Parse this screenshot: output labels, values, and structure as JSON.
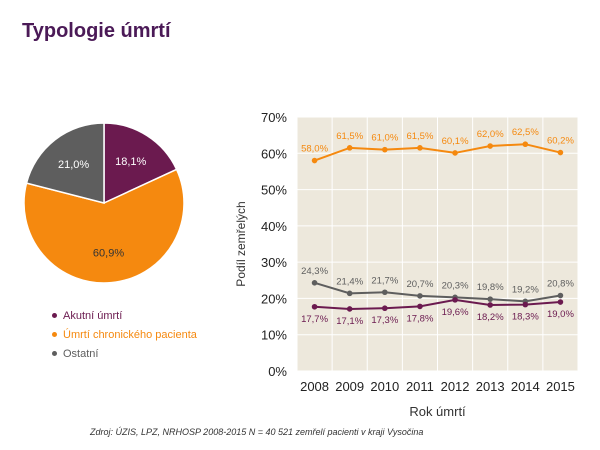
{
  "title": "Typologie úmrtí",
  "footer": "Zdroj: ÚZIS, LPZ, NRHOSP 2008-2015 N = 40 521 zemřelí pacienti v kraji Vysočina",
  "colors": {
    "acute": "#6b1a4f",
    "chronic": "#f5890f",
    "other": "#5e5e5e",
    "plot_bg": "#ede8dc",
    "grid": "#ffffff"
  },
  "chart_data": [
    {
      "type": "pie",
      "slices": [
        {
          "name": "Akutní úmrtí",
          "value": 18.1,
          "label": "18,1%",
          "color": "#6b1a4f"
        },
        {
          "name": "Úmrtí chronického pacienta",
          "value": 60.9,
          "label": "60,9%",
          "color": "#f5890f"
        },
        {
          "name": "Ostatní",
          "value": 21.0,
          "label": "21,0%",
          "color": "#5e5e5e"
        }
      ],
      "legend": [
        {
          "name": "Akutní úmrtí",
          "color": "#6b1a4f"
        },
        {
          "name": "Úmrtí chronického pacienta",
          "color": "#f5890f"
        },
        {
          "name": "Ostatní",
          "color": "#5e5e5e"
        }
      ]
    },
    {
      "type": "line",
      "x": [
        "2008",
        "2009",
        "2010",
        "2011",
        "2012",
        "2013",
        "2014",
        "2015"
      ],
      "xlabel": "Rok úmrtí",
      "ylabel": "Podíl zemřelých",
      "ylim": [
        0,
        70
      ],
      "yticks": [
        0,
        10,
        20,
        30,
        40,
        50,
        60,
        70
      ],
      "ytick_labels": [
        "0%",
        "10%",
        "20%",
        "30%",
        "40%",
        "50%",
        "60%",
        "70%"
      ],
      "grid": true,
      "series": [
        {
          "name": "Úmrtí chronického pacienta",
          "color": "#f5890f",
          "label_pos": "above",
          "values": [
            58.0,
            61.5,
            61.0,
            61.5,
            60.1,
            62.0,
            62.5,
            60.2
          ],
          "labels": [
            "58,0%",
            "61,5%",
            "61,0%",
            "61,5%",
            "60,1%",
            "62,0%",
            "62,5%",
            "60,2%"
          ]
        },
        {
          "name": "Ostatní",
          "color": "#5e5e5e",
          "label_pos": "above",
          "values": [
            24.3,
            21.4,
            21.7,
            20.7,
            20.3,
            19.8,
            19.2,
            20.8
          ],
          "labels": [
            "24,3%",
            "21,4%",
            "21,7%",
            "20,7%",
            "20,3%",
            "19,8%",
            "19,2%",
            "20,8%"
          ]
        },
        {
          "name": "Akutní úmrtí",
          "color": "#6b1a4f",
          "label_pos": "below",
          "values": [
            17.7,
            17.1,
            17.3,
            17.8,
            19.6,
            18.2,
            18.3,
            19.0
          ],
          "labels": [
            "17,7%",
            "17,1%",
            "17,3%",
            "17,8%",
            "19,6%",
            "18,2%",
            "18,3%",
            "19,0%"
          ]
        }
      ]
    }
  ]
}
